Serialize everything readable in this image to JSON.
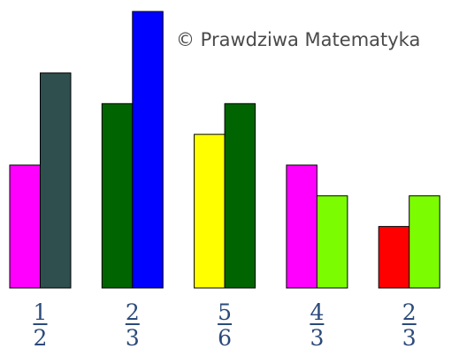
{
  "watermark": "© Prawdziwa Matematyka",
  "chart_data": {
    "type": "bar",
    "title": "",
    "xlabel": "",
    "ylabel": "",
    "ylim": [
      0,
      9
    ],
    "grid": false,
    "groups": [
      {
        "label": {
          "numerator": "1",
          "denominator": "2"
        },
        "bars": [
          {
            "value": 4,
            "color": "#ff00ff"
          },
          {
            "value": 7,
            "color": "#2f4f4f"
          }
        ]
      },
      {
        "label": {
          "numerator": "2",
          "denominator": "3"
        },
        "bars": [
          {
            "value": 6,
            "color": "#006400"
          },
          {
            "value": 9,
            "color": "#0000ff"
          }
        ]
      },
      {
        "label": {
          "numerator": "5",
          "denominator": "6"
        },
        "bars": [
          {
            "value": 5,
            "color": "#ffff00"
          },
          {
            "value": 6,
            "color": "#006400"
          }
        ]
      },
      {
        "label": {
          "numerator": "4",
          "denominator": "3"
        },
        "bars": [
          {
            "value": 4,
            "color": "#ff00ff"
          },
          {
            "value": 3,
            "color": "#7cfc00"
          }
        ]
      },
      {
        "label": {
          "numerator": "2",
          "denominator": "3"
        },
        "bars": [
          {
            "value": 2,
            "color": "#ff0000"
          },
          {
            "value": 3,
            "color": "#7cfc00"
          }
        ]
      }
    ]
  }
}
